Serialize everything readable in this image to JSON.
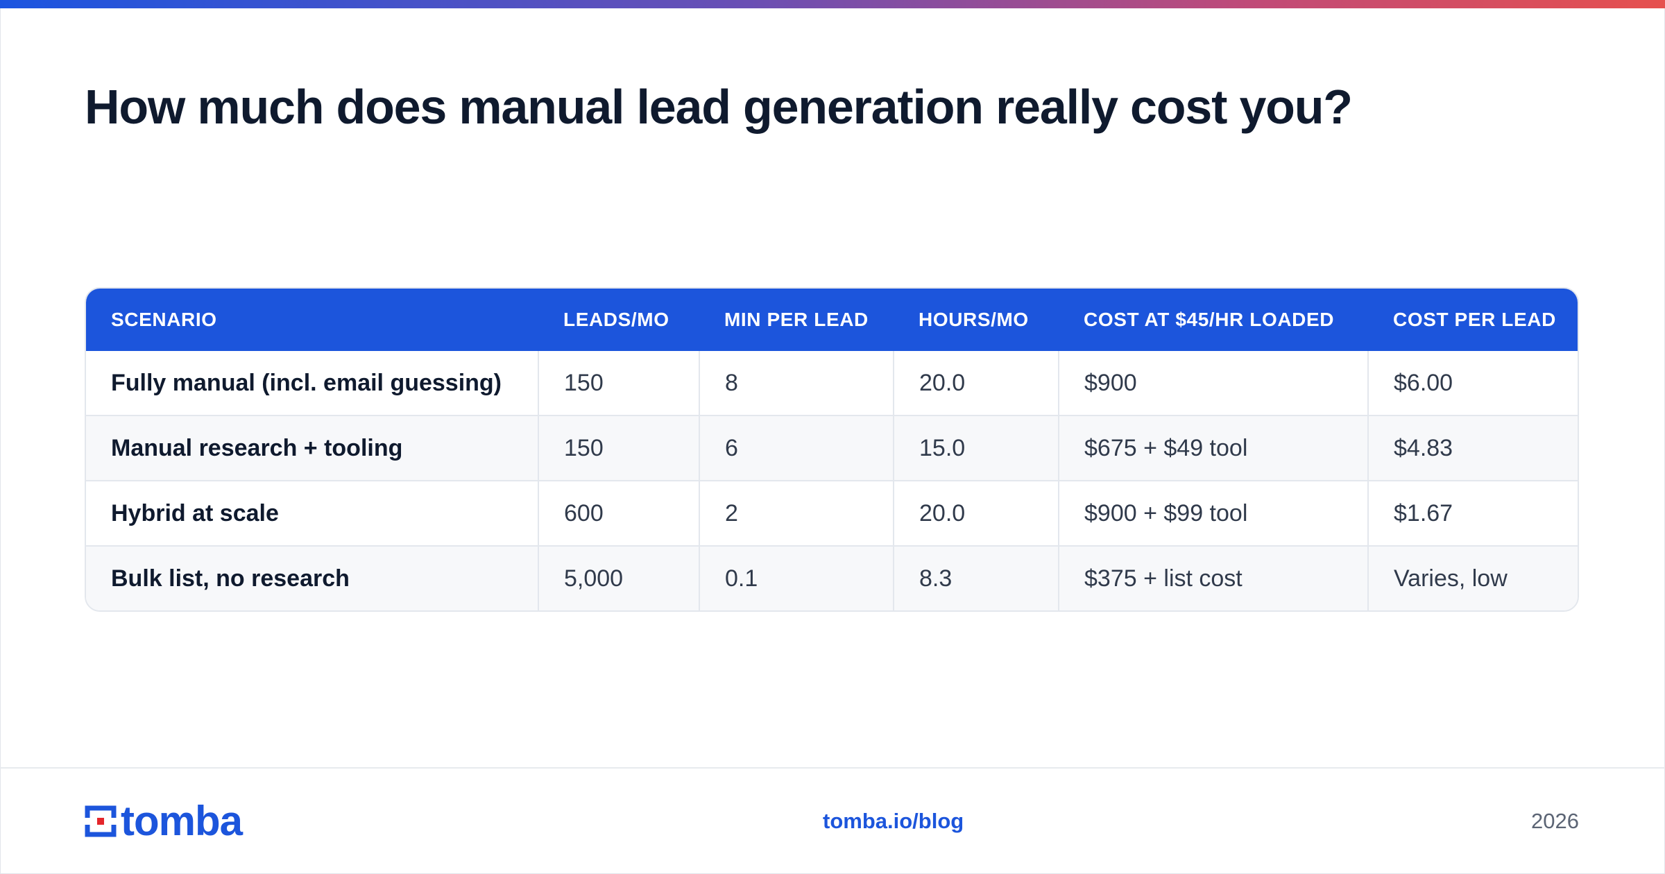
{
  "title": "How much does manual lead generation really cost you?",
  "colors": {
    "accent": "#1c55dc",
    "logo_red": "#e4262b",
    "title": "#0f1a2e",
    "gradient": [
      "#1b55e0",
      "#6a4fb4",
      "#c04a78",
      "#e6504e"
    ]
  },
  "table": {
    "headers": [
      "SCENARIO",
      "LEADS/MO",
      "MIN PER LEAD",
      "HOURS/MO",
      "COST AT $45/HR LOADED",
      "COST PER LEAD"
    ],
    "rows": [
      [
        "Fully manual (incl. email guessing)",
        "150",
        "8",
        "20.0",
        "$900",
        "$6.00"
      ],
      [
        "Manual research + tooling",
        "150",
        "6",
        "15.0",
        "$675 + $49 tool",
        "$4.83"
      ],
      [
        "Hybrid at scale",
        "600",
        "2",
        "20.0",
        "$900 + $99 tool",
        "$1.67"
      ],
      [
        "Bulk list, no research",
        "5,000",
        "0.1",
        "8.3",
        "$375 + list cost",
        "Varies, low"
      ]
    ]
  },
  "footer": {
    "logo_text": "tomba",
    "logo_icon": "tomba-logo-icon",
    "link": "tomba.io/blog",
    "year": "2026"
  }
}
